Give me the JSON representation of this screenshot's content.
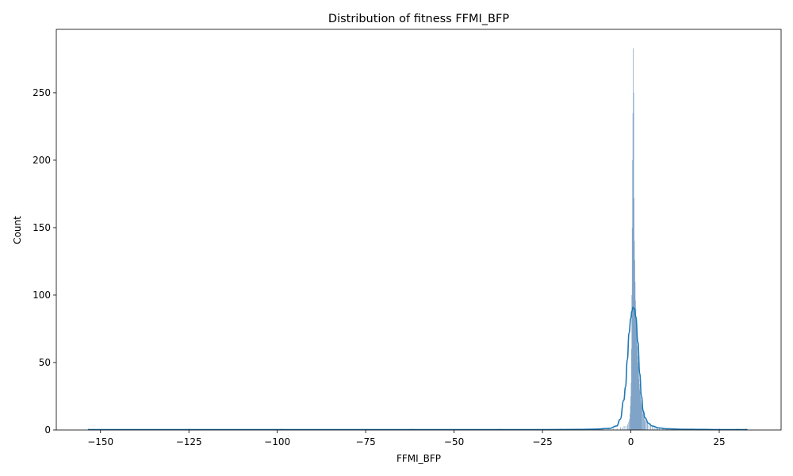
{
  "chart_data": {
    "type": "bar",
    "subtype": "histogram-with-kde",
    "title": "Distribution of fitness FFMI_BFP",
    "xlabel": "FFMI_BFP",
    "ylabel": "Count",
    "xlim": [
      -162.5,
      42.5
    ],
    "ylim": [
      0,
      297
    ],
    "x_ticks": [
      -150,
      -125,
      -100,
      -75,
      -50,
      -25,
      0,
      25
    ],
    "x_tick_labels": [
      "−150",
      "−125",
      "−100",
      "−75",
      "−50",
      "−25",
      "0",
      "25"
    ],
    "y_ticks": [
      0,
      50,
      100,
      150,
      200,
      250
    ],
    "y_tick_labels": [
      "0",
      "50",
      "100",
      "150",
      "200",
      "250"
    ],
    "grid": false,
    "colors": {
      "bars": "#7aa0c4",
      "bar_edge": "#ffffff",
      "kde": "#1f77b4"
    },
    "histogram": {
      "bin_width": 0.1,
      "bins": [
        [
          -153.5,
          1
        ],
        [
          -125.0,
          1
        ],
        [
          -99.0,
          1
        ],
        [
          -62.0,
          1
        ],
        [
          -37.0,
          1
        ],
        [
          -25.0,
          1
        ],
        [
          -20.0,
          1
        ],
        [
          -15.0,
          1
        ],
        [
          -10.0,
          1
        ],
        [
          -8.0,
          1
        ],
        [
          -6.5,
          1
        ],
        [
          -5.0,
          1
        ],
        [
          -4.0,
          1
        ],
        [
          -3.0,
          2
        ],
        [
          -2.5,
          2
        ],
        [
          -2.0,
          3
        ],
        [
          -1.5,
          3
        ],
        [
          -1.0,
          4
        ],
        [
          -0.7,
          6
        ],
        [
          -0.5,
          8
        ],
        [
          -0.3,
          12
        ],
        [
          -0.2,
          18
        ],
        [
          -0.1,
          25
        ],
        [
          0.0,
          35
        ],
        [
          0.1,
          60
        ],
        [
          0.2,
          100
        ],
        [
          0.3,
          150
        ],
        [
          0.4,
          200
        ],
        [
          0.5,
          235
        ],
        [
          0.6,
          283
        ],
        [
          0.7,
          250
        ],
        [
          0.8,
          172
        ],
        [
          0.9,
          140
        ],
        [
          1.0,
          126
        ],
        [
          1.1,
          110
        ],
        [
          1.2,
          96
        ],
        [
          1.3,
          90
        ],
        [
          1.4,
          80
        ],
        [
          1.5,
          75
        ],
        [
          1.6,
          68
        ],
        [
          1.7,
          62
        ],
        [
          1.8,
          55
        ],
        [
          1.9,
          50
        ],
        [
          2.0,
          47
        ],
        [
          2.1,
          42
        ],
        [
          2.2,
          38
        ],
        [
          2.3,
          34
        ],
        [
          2.4,
          30
        ],
        [
          2.5,
          28
        ],
        [
          2.6,
          25
        ],
        [
          2.7,
          22
        ],
        [
          2.8,
          20
        ],
        [
          2.9,
          18
        ],
        [
          3.0,
          16
        ],
        [
          3.2,
          14
        ],
        [
          3.4,
          12
        ],
        [
          3.6,
          10
        ],
        [
          3.8,
          8
        ],
        [
          4.0,
          7
        ],
        [
          4.3,
          6
        ],
        [
          4.6,
          5
        ],
        [
          5.0,
          4
        ],
        [
          5.5,
          3
        ],
        [
          6.0,
          3
        ],
        [
          6.5,
          2
        ],
        [
          7.0,
          2
        ],
        [
          7.5,
          2
        ],
        [
          8.0,
          1
        ],
        [
          9.0,
          1
        ],
        [
          10.0,
          1
        ],
        [
          12.0,
          1
        ],
        [
          15.0,
          1
        ],
        [
          20.0,
          1
        ],
        [
          25.0,
          1
        ],
        [
          30.0,
          1
        ],
        [
          32.5,
          1
        ]
      ]
    },
    "kde": {
      "x": [
        -153.5,
        -130,
        -100,
        -75,
        -50,
        -25,
        -15,
        -10,
        -6,
        -4,
        -3,
        -2,
        -1.5,
        -1,
        -0.5,
        0,
        0.3,
        0.6,
        1,
        1.4,
        2,
        2.5,
        3,
        3.5,
        4,
        5,
        6,
        8,
        10,
        15,
        20,
        25,
        33
      ],
      "y": [
        0.3,
        0.3,
        0.3,
        0.3,
        0.3,
        0.3,
        0.4,
        0.6,
        1.2,
        3,
        8,
        22,
        32,
        52,
        72,
        83,
        88,
        91,
        90,
        84,
        65,
        42,
        25,
        14,
        9,
        5,
        3,
        1.5,
        0.9,
        0.5,
        0.4,
        0.3,
        0.3
      ]
    }
  }
}
